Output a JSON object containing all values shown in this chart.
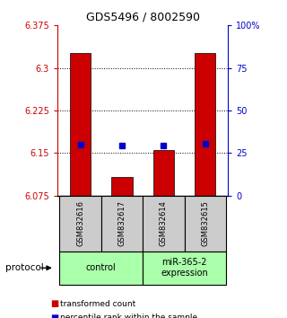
{
  "title": "GDS5496 / 8002590",
  "samples": [
    "GSM832616",
    "GSM832617",
    "GSM832614",
    "GSM832615"
  ],
  "bar_values": [
    6.326,
    6.108,
    6.155,
    6.326
  ],
  "percentile_values": [
    6.165,
    6.163,
    6.163,
    6.167
  ],
  "ymin": 6.075,
  "ymax": 6.375,
  "yticks": [
    6.075,
    6.15,
    6.225,
    6.3,
    6.375
  ],
  "ytick_labels": [
    "6.075",
    "6.15",
    "6.225",
    "6.3",
    "6.375"
  ],
  "y2ticks": [
    0,
    25,
    50,
    75,
    100
  ],
  "y2tick_labels": [
    "0",
    "25",
    "50",
    "75",
    "100%"
  ],
  "grid_yticks": [
    6.15,
    6.225,
    6.3
  ],
  "bar_color": "#cc0000",
  "percentile_color": "#0000cc",
  "left_tick_color": "#cc0000",
  "right_tick_color": "#0000cc",
  "bg_color": "#ffffff",
  "sample_box_color": "#cccccc",
  "group_box_color": "#aaffaa",
  "ctrl_label": "control",
  "mir_label": "miR-365-2\nexpression",
  "legend_red_label": "transformed count",
  "legend_blue_label": "percentile rank within the sample",
  "protocol_label": "protocol",
  "title_fontsize": 9,
  "tick_fontsize": 7,
  "sample_fontsize": 6,
  "group_fontsize": 7,
  "legend_fontsize": 6.5
}
